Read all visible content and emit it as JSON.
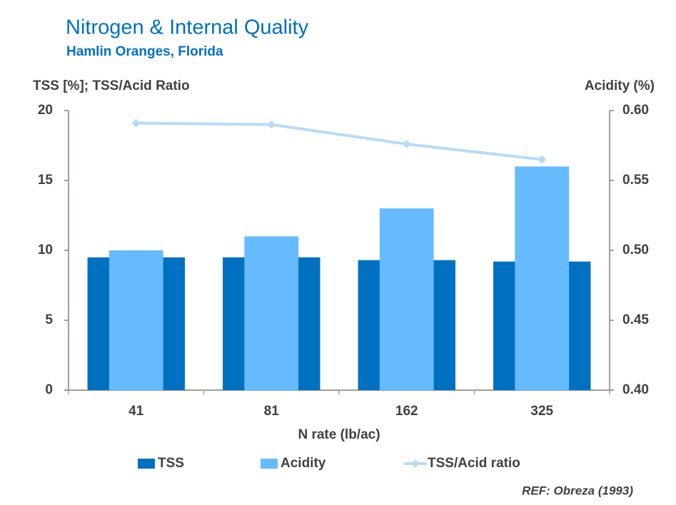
{
  "chart_data": {
    "type": "bar-line",
    "title": "Nitrogen & Internal Quality",
    "subtitle": "Hamlin Oranges, Florida",
    "y_label": "TSS [%];  TSS/Acid Ratio",
    "y2_label": "Acidity (%)",
    "x_label": "N rate (lb/ac)",
    "annotation": "REF: Obreza (1993)",
    "categories": [
      "41",
      "81",
      "162",
      "325"
    ],
    "series": [
      {
        "name": "TSS",
        "type": "bar",
        "color": "#0070c0",
        "values": [
          9.5,
          9.5,
          9.3,
          9.2
        ]
      },
      {
        "name": "Acidity",
        "type": "bar",
        "axis": "y2",
        "color": "#66bbff",
        "values": [
          0.5,
          0.51,
          0.53,
          0.56
        ]
      },
      {
        "name": "TSS/Acid ratio",
        "type": "line",
        "color": "#b7dbf7",
        "values": [
          19.1,
          19.0,
          17.6,
          16.5
        ]
      }
    ],
    "ylim": [
      0,
      20
    ],
    "yticks": [
      0,
      5,
      10,
      15,
      20
    ],
    "y2lim": [
      0.4,
      0.6
    ],
    "y2ticks": [
      {
        "value": 0.4,
        "label": "0.40"
      },
      {
        "value": 0.45,
        "label": "0.45"
      },
      {
        "value": 0.5,
        "label": "0.50"
      },
      {
        "value": 0.55,
        "label": "0.55"
      },
      {
        "value": 0.6,
        "label": "0.60"
      }
    ],
    "legend": "bottom"
  }
}
